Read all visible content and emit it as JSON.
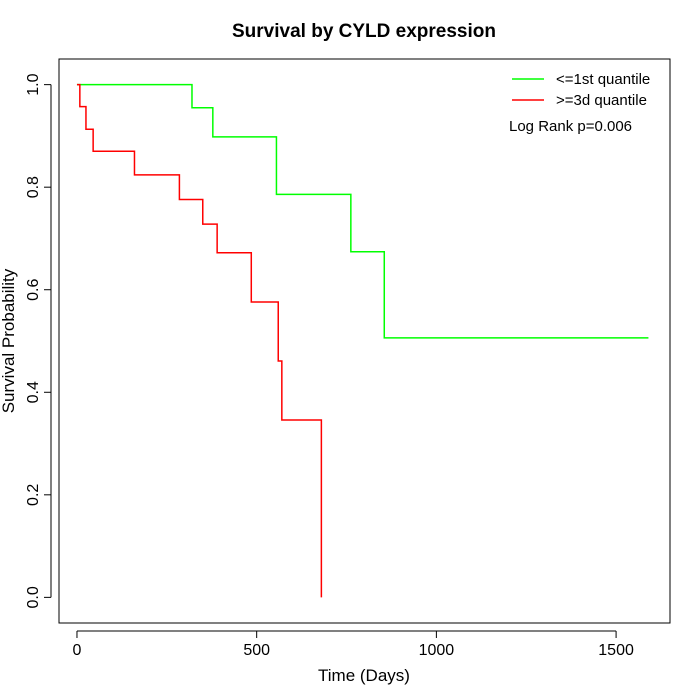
{
  "chart_data": {
    "type": "line",
    "title": "Survival by CYLD expression",
    "xlabel": "Time (Days)",
    "ylabel": "Survival Probability",
    "xlim": [
      -50,
      1650
    ],
    "ylim": [
      -0.05,
      1.05
    ],
    "x_ticks": [
      0,
      500,
      1000,
      1500
    ],
    "y_ticks": [
      0.0,
      0.2,
      0.4,
      0.6,
      0.8,
      1.0
    ],
    "x_tick_labels": [
      "0",
      "500",
      "1000",
      "1500"
    ],
    "y_tick_labels": [
      "0.0",
      "0.2",
      "0.4",
      "0.6",
      "0.8",
      "1.0"
    ],
    "grid": false,
    "legend_position": "top-right",
    "annotation": "Log Rank p=0.006",
    "series": [
      {
        "name": "<=1st quantile",
        "color": "#00ff00",
        "steps": [
          [
            0,
            1.0
          ],
          [
            320,
            0.955
          ],
          [
            378,
            0.898
          ],
          [
            555,
            0.786
          ],
          [
            762,
            0.674
          ],
          [
            855,
            0.506
          ],
          [
            1590,
            0.506
          ]
        ]
      },
      {
        "name": ">=3d quantile",
        "color": "#ff0000",
        "steps": [
          [
            0,
            1.0
          ],
          [
            8,
            0.957
          ],
          [
            25,
            0.913
          ],
          [
            45,
            0.87
          ],
          [
            160,
            0.824
          ],
          [
            285,
            0.776
          ],
          [
            350,
            0.728
          ],
          [
            390,
            0.672
          ],
          [
            485,
            0.576
          ],
          [
            560,
            0.461
          ],
          [
            570,
            0.346
          ],
          [
            680,
            0.0
          ]
        ]
      }
    ]
  }
}
